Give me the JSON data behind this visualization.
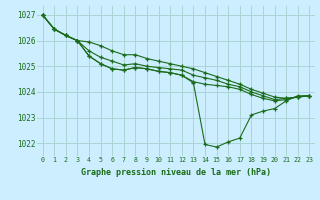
{
  "title": "Graphe pression niveau de la mer (hPa)",
  "bg_color": "#cceeff",
  "grid_color": "#aad4d4",
  "line_color": "#1a6b1a",
  "xlim_min": -0.5,
  "xlim_max": 23.5,
  "ylim_min": 1021.5,
  "ylim_max": 1027.35,
  "yticks": [
    1022,
    1023,
    1024,
    1025,
    1026,
    1027
  ],
  "xticks": [
    0,
    1,
    2,
    3,
    4,
    5,
    6,
    7,
    8,
    9,
    10,
    11,
    12,
    13,
    14,
    15,
    16,
    17,
    18,
    19,
    20,
    21,
    22,
    23
  ],
  "lines": [
    [
      1027.0,
      1026.45,
      1026.2,
      1026.0,
      1025.95,
      1025.8,
      1025.6,
      1025.45,
      1025.45,
      1025.3,
      1025.2,
      1025.1,
      1025.0,
      1024.9,
      1024.75,
      1024.6,
      1024.45,
      1024.3,
      1024.1,
      1023.95,
      1023.8,
      1023.75,
      1023.8,
      1023.85
    ],
    [
      1027.0,
      1026.45,
      1026.2,
      1026.0,
      1025.6,
      1025.35,
      1025.2,
      1025.05,
      1025.1,
      1025.0,
      1024.95,
      1024.9,
      1024.85,
      1024.65,
      1024.55,
      1024.45,
      1024.3,
      1024.2,
      1024.0,
      1023.85,
      1023.7,
      1023.75,
      1023.8,
      1023.85
    ],
    [
      1027.0,
      1026.45,
      1026.2,
      1026.0,
      1025.4,
      1025.1,
      1024.9,
      1024.85,
      1024.95,
      1024.9,
      1024.8,
      1024.75,
      1024.65,
      1024.4,
      1024.3,
      1024.25,
      1024.2,
      1024.1,
      1023.9,
      1023.75,
      1023.65,
      1023.7,
      1023.8,
      1023.85
    ],
    [
      1027.0,
      1026.45,
      1026.2,
      1026.0,
      1025.4,
      1025.1,
      1024.9,
      1024.85,
      1024.95,
      1024.9,
      1024.8,
      1024.75,
      1024.65,
      1024.35,
      1021.95,
      1021.85,
      1022.05,
      1022.2,
      1023.1,
      1023.25,
      1023.35,
      1023.65,
      1023.85,
      1023.85
    ]
  ]
}
